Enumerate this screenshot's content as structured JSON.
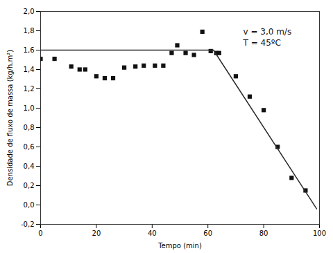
{
  "chart_data": {
    "type": "scatter",
    "xlabel": "Tempo (min)",
    "ylabel": "Densidade de fluxo de massa (kg/h.m²)",
    "annotations": [
      "v = 3,0 m/s",
      "T = 45ºC"
    ],
    "xlim": [
      0,
      100
    ],
    "ylim": [
      -0.2,
      2.0
    ],
    "xticks": [
      0,
      20,
      40,
      60,
      80,
      100
    ],
    "yticks": [
      {
        "value": -0.2,
        "label": "-0,2"
      },
      {
        "value": 0.0,
        "label": "0,0"
      },
      {
        "value": 0.2,
        "label": "0,2"
      },
      {
        "value": 0.4,
        "label": "0,4"
      },
      {
        "value": 0.6,
        "label": "0,6"
      },
      {
        "value": 0.8,
        "label": "0,8"
      },
      {
        "value": 1.0,
        "label": "1,0"
      },
      {
        "value": 1.2,
        "label": "1,2"
      },
      {
        "value": 1.4,
        "label": "1,4"
      },
      {
        "value": 1.6,
        "label": "1,6"
      },
      {
        "value": 1.8,
        "label": "1,8"
      },
      {
        "value": 2.0,
        "label": "2,0"
      }
    ],
    "grid": false,
    "series": [
      {
        "type": "scatter",
        "marker": "square",
        "color": "#111111",
        "x": [
          0,
          5,
          11,
          14,
          16,
          20,
          23,
          26,
          30,
          34,
          37,
          41,
          44,
          47,
          49,
          52,
          55,
          58,
          61,
          63,
          64,
          70,
          75,
          80,
          85,
          90,
          95
        ],
        "values": [
          1.51,
          1.51,
          1.43,
          1.4,
          1.4,
          1.33,
          1.31,
          1.31,
          1.42,
          1.43,
          1.44,
          1.44,
          1.44,
          1.57,
          1.65,
          1.57,
          1.55,
          1.79,
          1.59,
          1.57,
          1.57,
          1.33,
          1.12,
          0.98,
          0.6,
          0.28,
          0.15
        ]
      },
      {
        "type": "line",
        "line_style": "solid",
        "color": "#2a2a2a",
        "x": [
          0,
          62
        ],
        "values": [
          1.6,
          1.6
        ]
      },
      {
        "type": "line",
        "line_style": "solid",
        "color": "#2a2a2a",
        "x": [
          62,
          99
        ],
        "values": [
          1.6,
          -0.04
        ]
      }
    ]
  }
}
